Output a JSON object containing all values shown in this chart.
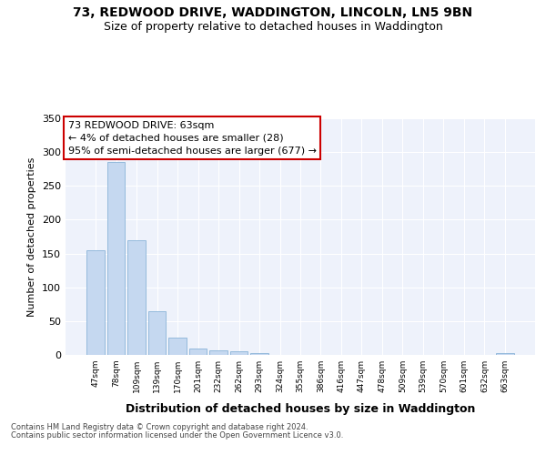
{
  "title1": "73, REDWOOD DRIVE, WADDINGTON, LINCOLN, LN5 9BN",
  "title2": "Size of property relative to detached houses in Waddington",
  "xlabel": "Distribution of detached houses by size in Waddington",
  "ylabel": "Number of detached properties",
  "categories": [
    "47sqm",
    "78sqm",
    "109sqm",
    "139sqm",
    "170sqm",
    "201sqm",
    "232sqm",
    "262sqm",
    "293sqm",
    "324sqm",
    "355sqm",
    "386sqm",
    "416sqm",
    "447sqm",
    "478sqm",
    "509sqm",
    "539sqm",
    "570sqm",
    "601sqm",
    "632sqm",
    "663sqm"
  ],
  "values": [
    155,
    286,
    170,
    65,
    25,
    10,
    7,
    5,
    3,
    0,
    0,
    0,
    0,
    0,
    0,
    0,
    0,
    0,
    0,
    0,
    3
  ],
  "bar_color": "#c5d8f0",
  "bar_edge_color": "#8ab4d8",
  "annotation_title": "73 REDWOOD DRIVE: 63sqm",
  "annotation_line1": "← 4% of detached houses are smaller (28)",
  "annotation_line2": "95% of semi-detached houses are larger (677) →",
  "annotation_box_color": "#ffffff",
  "annotation_box_edge": "#cc0000",
  "footer1": "Contains HM Land Registry data © Crown copyright and database right 2024.",
  "footer2": "Contains public sector information licensed under the Open Government Licence v3.0.",
  "ylim": [
    0,
    350
  ],
  "yticks": [
    0,
    50,
    100,
    150,
    200,
    250,
    300,
    350
  ],
  "bg_color": "#eef2fb",
  "grid_color": "#ffffff",
  "title1_fontsize": 10,
  "title2_fontsize": 9
}
